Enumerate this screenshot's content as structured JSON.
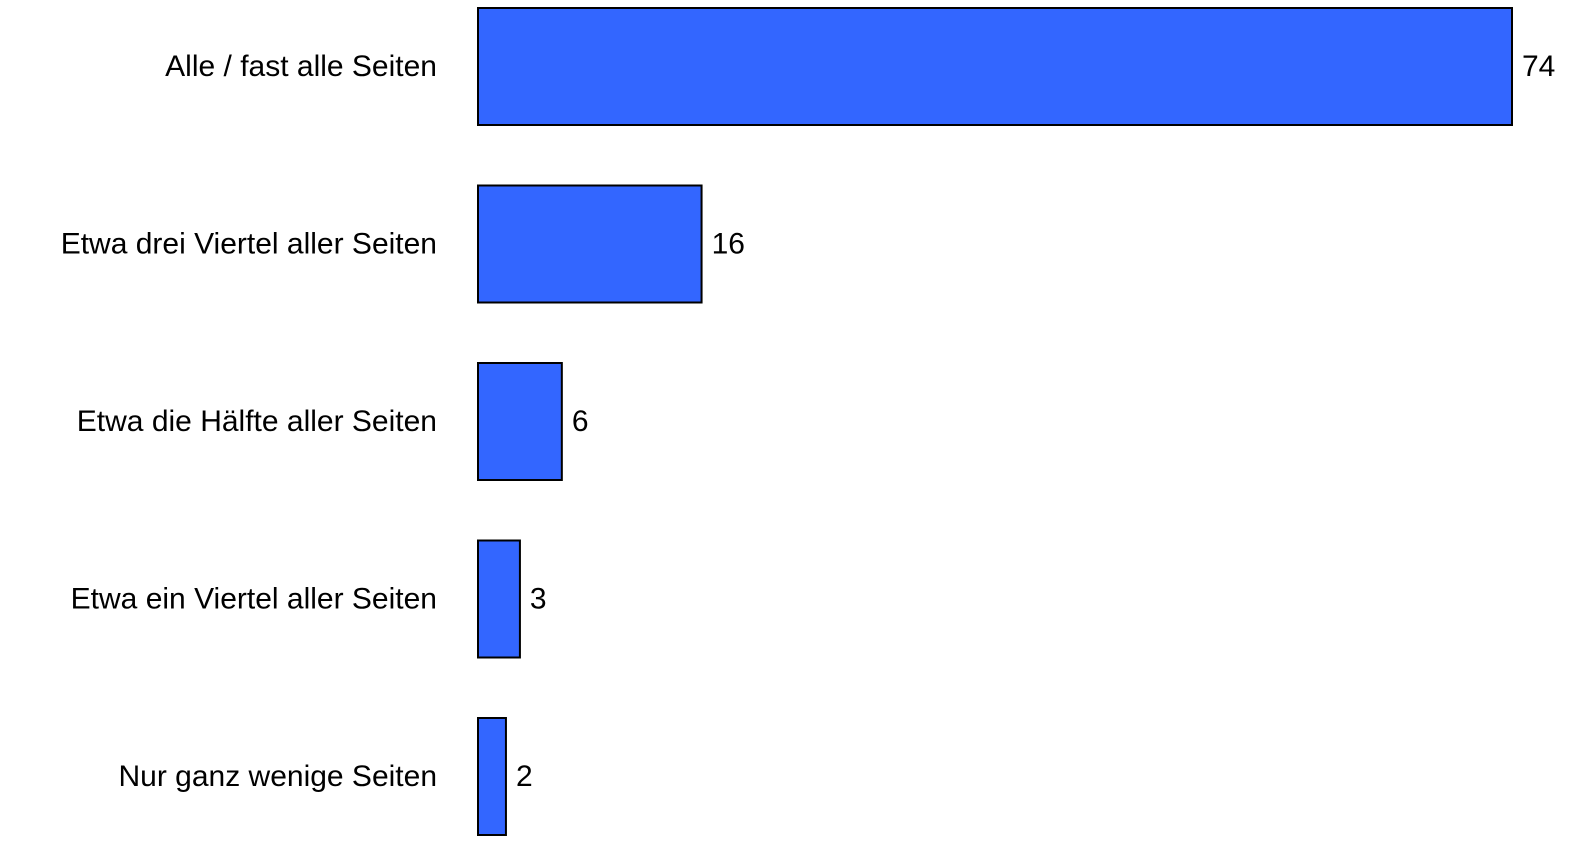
{
  "chart_data": {
    "type": "bar",
    "orientation": "horizontal",
    "categories": [
      "Alle / fast alle Seiten",
      "Etwa drei Viertel aller Seiten",
      "Etwa die Hälfte aller Seiten",
      "Etwa ein Viertel aller Seiten",
      "Nur ganz wenige Seiten"
    ],
    "values": [
      74,
      16,
      6,
      3,
      2
    ],
    "value_labels": [
      "74",
      "16",
      "6",
      "3",
      "2"
    ],
    "title": "",
    "xlabel": "",
    "ylabel": "",
    "xlim": [
      0,
      74
    ],
    "grid": false,
    "legend": "none",
    "bar_color": "#3366ff",
    "bar_edge_color": "#000000"
  }
}
